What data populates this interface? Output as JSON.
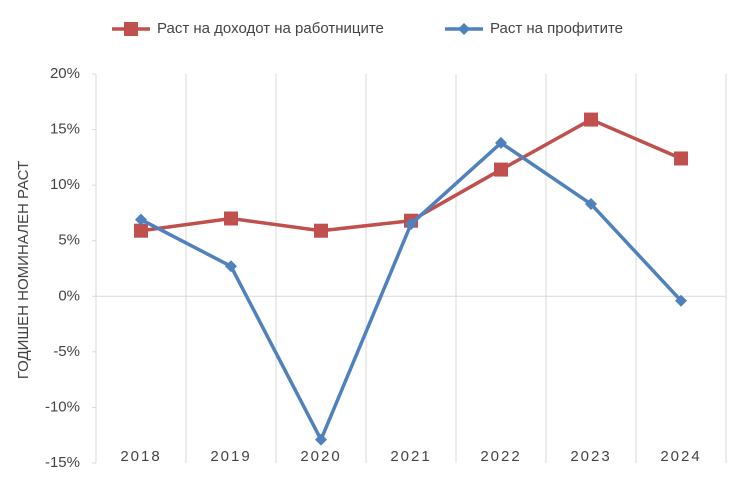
{
  "chart_data": {
    "type": "line",
    "ylabel": "ГОДИШЕН НОМИНАЛЕН РАСТ",
    "categories": [
      "2018",
      "2019",
      "2020",
      "2021",
      "2022",
      "2023",
      "2024"
    ],
    "series": [
      {
        "name": "Раст на доходот на работниците",
        "color": "#c0504d",
        "marker": "square",
        "values": [
          5.9,
          7.0,
          5.9,
          6.8,
          11.4,
          15.9,
          12.4
        ]
      },
      {
        "name": "Раст на профитите",
        "color": "#4f81bd",
        "marker": "diamond",
        "values": [
          6.9,
          2.7,
          -12.9,
          6.5,
          13.8,
          8.3,
          -0.4
        ]
      }
    ],
    "ylim": [
      -15,
      20
    ],
    "yticks": [
      {
        "value": -15,
        "label": "-15%"
      },
      {
        "value": -10,
        "label": "-10%"
      },
      {
        "value": -5,
        "label": "-5%"
      },
      {
        "value": 0,
        "label": "0%"
      },
      {
        "value": 5,
        "label": "5%"
      },
      {
        "value": 10,
        "label": "10%"
      },
      {
        "value": 15,
        "label": "15%"
      },
      {
        "value": 20,
        "label": "20%"
      }
    ],
    "xgrid": true,
    "legend": "top"
  }
}
